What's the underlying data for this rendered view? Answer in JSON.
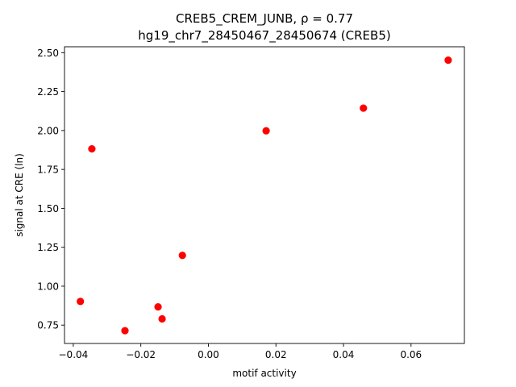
{
  "chart_data": {
    "type": "scatter",
    "title_line1": "CREB5_CREM_JUNB, ρ = 0.77",
    "title_line2": "hg19_chr7_28450467_28450674 (CREB5)",
    "xlabel": "motif activity",
    "ylabel": "signal at CRE (ln)",
    "xlim": [
      -0.0426,
      0.0758
    ],
    "ylim": [
      0.632,
      2.538
    ],
    "xticks": [
      -0.04,
      -0.02,
      0.0,
      0.02,
      0.04,
      0.06
    ],
    "xtick_labels": [
      "−0.04",
      "−0.02",
      "0.00",
      "0.02",
      "0.04",
      "0.06"
    ],
    "yticks": [
      0.75,
      1.0,
      1.25,
      1.5,
      1.75,
      2.0,
      2.25,
      2.5
    ],
    "ytick_labels": [
      "0.75",
      "1.00",
      "1.25",
      "1.50",
      "1.75",
      "2.00",
      "2.25",
      "2.50"
    ],
    "grid": false,
    "marker_color": "#ff0000",
    "points": [
      {
        "x": -0.0379,
        "y": 0.902
      },
      {
        "x": -0.0345,
        "y": 1.882
      },
      {
        "x": -0.0247,
        "y": 0.714
      },
      {
        "x": -0.0149,
        "y": 0.867
      },
      {
        "x": -0.0137,
        "y": 0.79
      },
      {
        "x": -0.0077,
        "y": 1.198
      },
      {
        "x": 0.0171,
        "y": 1.998
      },
      {
        "x": 0.0459,
        "y": 2.144
      },
      {
        "x": 0.071,
        "y": 2.452
      }
    ]
  }
}
